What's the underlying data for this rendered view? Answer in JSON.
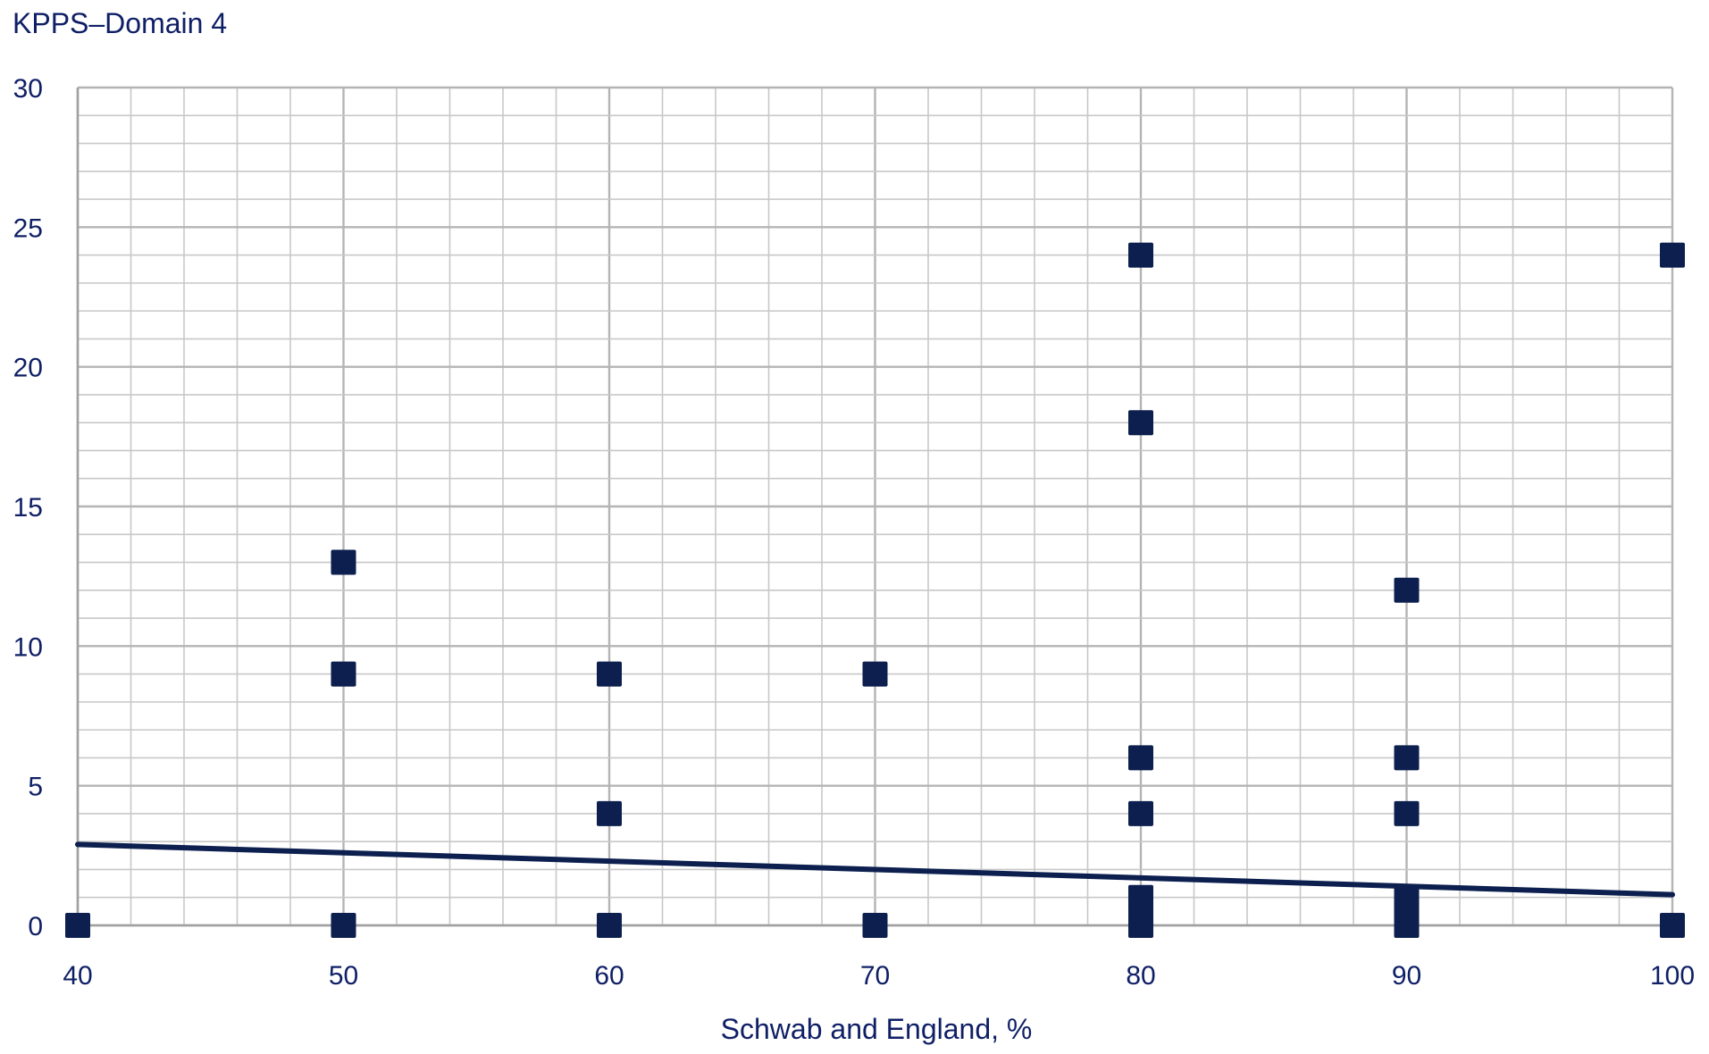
{
  "chart_data": {
    "type": "scatter",
    "title": "",
    "xlabel": "Schwab and England, %",
    "ylabel": "KPPS–Domain 4",
    "xlim": [
      40,
      100
    ],
    "ylim": [
      0,
      30
    ],
    "x_ticks": [
      40,
      50,
      60,
      70,
      80,
      90,
      100
    ],
    "y_ticks": [
      0,
      5,
      10,
      15,
      20,
      25,
      30
    ],
    "x_tick_labels": [
      "40",
      "50",
      "60",
      "70",
      "80",
      "90",
      "100"
    ],
    "y_tick_labels": [
      "0",
      "5",
      "10",
      "15",
      "20",
      "25",
      "30"
    ],
    "grid": true,
    "grid_minor_x_step": 2,
    "grid_minor_y_step": 1,
    "legend": "none",
    "series": [
      {
        "points": [
          {
            "x": 40,
            "y": 0
          },
          {
            "x": 50,
            "y": 0
          },
          {
            "x": 50,
            "y": 9
          },
          {
            "x": 50,
            "y": 13
          },
          {
            "x": 60,
            "y": 0
          },
          {
            "x": 60,
            "y": 4
          },
          {
            "x": 60,
            "y": 9
          },
          {
            "x": 70,
            "y": 0
          },
          {
            "x": 70,
            "y": 9
          },
          {
            "x": 80,
            "y": 0
          },
          {
            "x": 80,
            "y": 0.5
          },
          {
            "x": 80,
            "y": 1
          },
          {
            "x": 80,
            "y": 4
          },
          {
            "x": 80,
            "y": 6
          },
          {
            "x": 80,
            "y": 18
          },
          {
            "x": 80,
            "y": 24
          },
          {
            "x": 90,
            "y": 0
          },
          {
            "x": 90,
            "y": 0.5
          },
          {
            "x": 90,
            "y": 1
          },
          {
            "x": 90,
            "y": 4
          },
          {
            "x": 90,
            "y": 6
          },
          {
            "x": 90,
            "y": 12
          },
          {
            "x": 100,
            "y": 0
          },
          {
            "x": 100,
            "y": 24
          }
        ]
      }
    ],
    "trendline": {
      "x": [
        40,
        100
      ],
      "y": [
        2.9,
        1.1
      ]
    },
    "colors": {
      "marker": "#0c1f4f",
      "trendline": "#0c1f4f",
      "text": "#0f1f66",
      "grid": "#c8c8c8",
      "axis": "#a0a0a0"
    }
  }
}
